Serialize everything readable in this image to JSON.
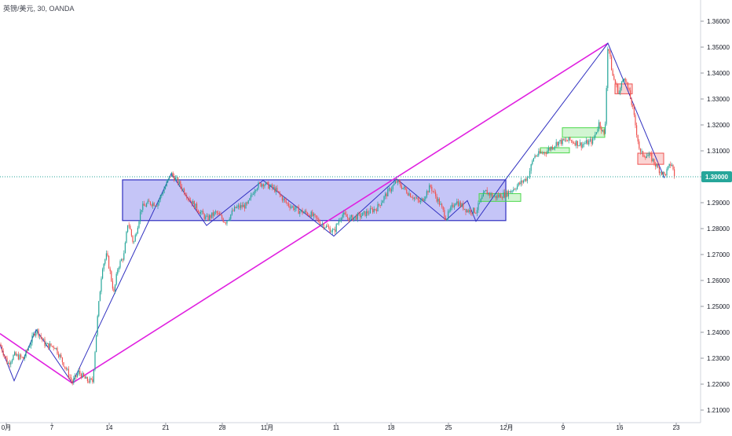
{
  "header": {
    "symbol_title": "英镑/美元, 30, OANDA"
  },
  "chart_data": {
    "type": "candlestick",
    "title": "英镑/美元, 30, OANDA",
    "ylim": [
      1.205,
      1.365
    ],
    "y_ticks": [
      "1.36000",
      "1.35000",
      "1.34000",
      "1.33000",
      "1.32000",
      "1.31000",
      "1.30000",
      "1.29000",
      "1.28000",
      "1.27000",
      "1.26000",
      "1.25000",
      "1.24000",
      "1.23000",
      "1.22000",
      "1.21000"
    ],
    "x_ticks": [
      "0月",
      "7",
      "14",
      "21",
      "28",
      "11月",
      "11",
      "18",
      "25",
      "12月",
      "9",
      "16",
      "23"
    ],
    "last_price_label": "1.30000",
    "current_price": 1.3,
    "grid": false,
    "colors": {
      "up": "#26a69a",
      "down": "#ef5350",
      "wave": "#3030c0",
      "trendline": "#e020e0",
      "range_box_fill": "#8c8cf0",
      "range_box_border": "#3030c0",
      "price_line": "#26a69a",
      "small_box_green": "#4cd94c",
      "small_box_red": "#ef5350"
    },
    "price_path": [
      {
        "x": 0,
        "y": 1.2354
      },
      {
        "x": 10,
        "y": 1.2278
      },
      {
        "x": 18,
        "y": 1.2312
      },
      {
        "x": 30,
        "y": 1.2298
      },
      {
        "x": 46,
        "y": 1.2412
      },
      {
        "x": 58,
        "y": 1.2351
      },
      {
        "x": 70,
        "y": 1.2345
      },
      {
        "x": 85,
        "y": 1.2254
      },
      {
        "x": 92,
        "y": 1.2205
      },
      {
        "x": 100,
        "y": 1.2246
      },
      {
        "x": 110,
        "y": 1.2215
      },
      {
        "x": 118,
        "y": 1.221
      },
      {
        "x": 124,
        "y": 1.245
      },
      {
        "x": 130,
        "y": 1.265
      },
      {
        "x": 136,
        "y": 1.27
      },
      {
        "x": 145,
        "y": 1.255
      },
      {
        "x": 150,
        "y": 1.265
      },
      {
        "x": 158,
        "y": 1.27
      },
      {
        "x": 163,
        "y": 1.283
      },
      {
        "x": 170,
        "y": 1.274
      },
      {
        "x": 180,
        "y": 1.288
      },
      {
        "x": 190,
        "y": 1.29
      },
      {
        "x": 200,
        "y": 1.2895
      },
      {
        "x": 210,
        "y": 1.296
      },
      {
        "x": 218,
        "y": 1.3012
      },
      {
        "x": 228,
        "y": 1.2973
      },
      {
        "x": 240,
        "y": 1.292
      },
      {
        "x": 250,
        "y": 1.288
      },
      {
        "x": 263,
        "y": 1.2837
      },
      {
        "x": 275,
        "y": 1.2862
      },
      {
        "x": 287,
        "y": 1.2826
      },
      {
        "x": 300,
        "y": 1.288
      },
      {
        "x": 315,
        "y": 1.289
      },
      {
        "x": 325,
        "y": 1.296
      },
      {
        "x": 335,
        "y": 1.2976
      },
      {
        "x": 350,
        "y": 1.2951
      },
      {
        "x": 365,
        "y": 1.2897
      },
      {
        "x": 380,
        "y": 1.2869
      },
      {
        "x": 395,
        "y": 1.2856
      },
      {
        "x": 410,
        "y": 1.2818
      },
      {
        "x": 425,
        "y": 1.2787
      },
      {
        "x": 435,
        "y": 1.2856
      },
      {
        "x": 445,
        "y": 1.2838
      },
      {
        "x": 460,
        "y": 1.2851
      },
      {
        "x": 480,
        "y": 1.288
      },
      {
        "x": 493,
        "y": 1.2938
      },
      {
        "x": 505,
        "y": 1.2981
      },
      {
        "x": 520,
        "y": 1.2938
      },
      {
        "x": 535,
        "y": 1.29
      },
      {
        "x": 548,
        "y": 1.2963
      },
      {
        "x": 560,
        "y": 1.2895
      },
      {
        "x": 568,
        "y": 1.284
      },
      {
        "x": 580,
        "y": 1.2907
      },
      {
        "x": 595,
        "y": 1.287
      },
      {
        "x": 606,
        "y": 1.2868
      },
      {
        "x": 618,
        "y": 1.2943
      },
      {
        "x": 630,
        "y": 1.2922
      },
      {
        "x": 645,
        "y": 1.2935
      },
      {
        "x": 660,
        "y": 1.2969
      },
      {
        "x": 672,
        "y": 1.2998
      },
      {
        "x": 680,
        "y": 1.308
      },
      {
        "x": 695,
        "y": 1.3097
      },
      {
        "x": 710,
        "y": 1.3133
      },
      {
        "x": 725,
        "y": 1.3141
      },
      {
        "x": 740,
        "y": 1.3124
      },
      {
        "x": 755,
        "y": 1.3139
      },
      {
        "x": 763,
        "y": 1.321
      },
      {
        "x": 770,
        "y": 1.3152
      },
      {
        "x": 774,
        "y": 1.3515
      },
      {
        "x": 780,
        "y": 1.339
      },
      {
        "x": 788,
        "y": 1.3322
      },
      {
        "x": 795,
        "y": 1.3393
      },
      {
        "x": 805,
        "y": 1.3273
      },
      {
        "x": 815,
        "y": 1.309
      },
      {
        "x": 828,
        "y": 1.3078
      },
      {
        "x": 838,
        "y": 1.3031
      },
      {
        "x": 846,
        "y": 1.3006
      },
      {
        "x": 855,
        "y": 1.3054
      },
      {
        "x": 860,
        "y": 1.2982
      }
    ],
    "wave_path": [
      {
        "x": 0,
        "y": 1.2352
      },
      {
        "x": 18,
        "y": 1.2213
      },
      {
        "x": 46,
        "y": 1.241
      },
      {
        "x": 92,
        "y": 1.2204
      },
      {
        "x": 218,
        "y": 1.3012
      },
      {
        "x": 263,
        "y": 1.2812
      },
      {
        "x": 335,
        "y": 1.2986
      },
      {
        "x": 425,
        "y": 1.2771
      },
      {
        "x": 505,
        "y": 1.2992
      },
      {
        "x": 568,
        "y": 1.2833
      },
      {
        "x": 595,
        "y": 1.2908
      },
      {
        "x": 606,
        "y": 1.2828
      },
      {
        "x": 645,
        "y": 1.2995
      },
      {
        "x": 774,
        "y": 1.3515
      },
      {
        "x": 846,
        "y": 1.2995
      }
    ],
    "trendline": [
      {
        "x": 0,
        "y": 1.2395
      },
      {
        "x": 92,
        "y": 1.2204
      },
      {
        "x": 774,
        "y": 1.3515
      }
    ],
    "range_box": {
      "x1": 156,
      "x2": 644,
      "y_top": 1.2988,
      "y_bottom": 1.2831
    },
    "small_boxes": [
      {
        "x1": 610,
        "x2": 663,
        "y_top": 1.2935,
        "y_bottom": 1.2905,
        "kind": "green"
      },
      {
        "x1": 688,
        "x2": 725,
        "y_top": 1.3112,
        "y_bottom": 1.3092,
        "kind": "green"
      },
      {
        "x1": 716,
        "x2": 770,
        "y_top": 1.3189,
        "y_bottom": 1.3152,
        "kind": "green"
      },
      {
        "x1": 783,
        "x2": 805,
        "y_top": 1.3358,
        "y_bottom": 1.332,
        "kind": "red"
      },
      {
        "x1": 812,
        "x2": 845,
        "y_top": 1.3091,
        "y_bottom": 1.3048,
        "kind": "red"
      }
    ]
  }
}
